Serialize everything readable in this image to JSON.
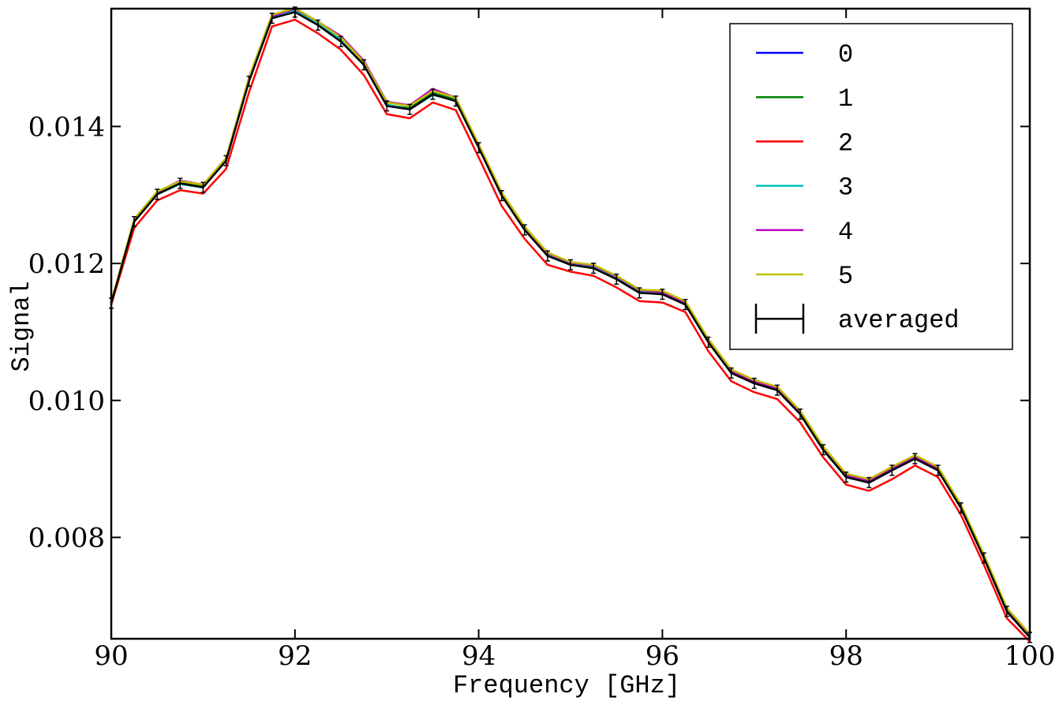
{
  "chart_data": {
    "type": "line",
    "title": "",
    "xlabel": "Frequency [GHz]",
    "ylabel": "Signal",
    "xlim": [
      90,
      100
    ],
    "ylim": [
      0.00652,
      0.01572
    ],
    "xticks": [
      90,
      92,
      94,
      96,
      98,
      100
    ],
    "xtick_labels": [
      "90",
      "92",
      "94",
      "96",
      "98",
      "100"
    ],
    "yticks": [
      0.008,
      0.01,
      0.012,
      0.014
    ],
    "ytick_labels": [
      "0.008",
      "0.010",
      "0.012",
      "0.014"
    ],
    "grid": false,
    "legend_position": "top-right",
    "x": [
      90.0,
      90.25,
      90.5,
      90.75,
      91.0,
      91.25,
      91.5,
      91.75,
      92.0,
      92.25,
      92.5,
      92.75,
      93.0,
      93.25,
      93.5,
      93.75,
      94.0,
      94.25,
      94.5,
      94.75,
      95.0,
      95.25,
      95.5,
      95.75,
      96.0,
      96.25,
      96.5,
      96.75,
      97.0,
      97.25,
      97.5,
      97.75,
      98.0,
      98.25,
      98.5,
      98.75,
      99.0,
      99.25,
      99.5,
      99.75,
      100.0
    ],
    "series": [
      {
        "name": "0",
        "color": "#0000ff",
        "values": [
          0.01142,
          0.01262,
          0.01302,
          0.01318,
          0.01312,
          0.0135,
          0.01468,
          0.01558,
          0.01568,
          0.01548,
          0.01525,
          0.0149,
          0.0143,
          0.01425,
          0.01448,
          0.01438,
          0.0137,
          0.013,
          0.0125,
          0.01212,
          0.01198,
          0.01194,
          0.01178,
          0.01158,
          0.01155,
          0.0114,
          0.01085,
          0.0104,
          0.01025,
          0.01015,
          0.0098,
          0.00928,
          0.00888,
          0.0088,
          0.00898,
          0.00915,
          0.00898,
          0.00843,
          0.0077,
          0.00692,
          0.00654
        ]
      },
      {
        "name": "1",
        "color": "#008000",
        "values": [
          0.01142,
          0.01262,
          0.01303,
          0.01319,
          0.01313,
          0.01351,
          0.01469,
          0.01559,
          0.01569,
          0.01549,
          0.01526,
          0.01491,
          0.01431,
          0.01427,
          0.01449,
          0.01439,
          0.01371,
          0.01301,
          0.01251,
          0.01213,
          0.01199,
          0.01195,
          0.01179,
          0.01159,
          0.01156,
          0.01141,
          0.01086,
          0.01041,
          0.01026,
          0.01016,
          0.00981,
          0.00929,
          0.00889,
          0.00881,
          0.00899,
          0.00916,
          0.00899,
          0.00844,
          0.00771,
          0.00693,
          0.00655
        ]
      },
      {
        "name": "2",
        "color": "#ff0000",
        "values": [
          0.0114,
          0.01252,
          0.01292,
          0.01307,
          0.01302,
          0.01338,
          0.0145,
          0.01546,
          0.01556,
          0.01536,
          0.01512,
          0.01475,
          0.01418,
          0.01412,
          0.01435,
          0.01424,
          0.01355,
          0.01284,
          0.01236,
          0.01198,
          0.01188,
          0.01182,
          0.01165,
          0.01145,
          0.01143,
          0.01129,
          0.01072,
          0.01028,
          0.01012,
          0.01002,
          0.00968,
          0.00917,
          0.00877,
          0.00868,
          0.00885,
          0.00905,
          0.00888,
          0.00833,
          0.0076,
          0.00682,
          0.00648
        ]
      },
      {
        "name": "3",
        "color": "#00bfbf",
        "values": [
          0.01142,
          0.01263,
          0.01301,
          0.01316,
          0.01311,
          0.01351,
          0.01469,
          0.01559,
          0.0157,
          0.0155,
          0.01527,
          0.01492,
          0.01432,
          0.01425,
          0.01446,
          0.01438,
          0.01371,
          0.01301,
          0.01251,
          0.01213,
          0.01199,
          0.01196,
          0.0118,
          0.0116,
          0.01157,
          0.01142,
          0.01087,
          0.01042,
          0.01027,
          0.01017,
          0.00982,
          0.0093,
          0.0089,
          0.00882,
          0.009,
          0.00917,
          0.009,
          0.00845,
          0.00772,
          0.00694,
          0.00656
        ]
      },
      {
        "name": "4",
        "color": "#bf00bf",
        "values": [
          0.01143,
          0.01264,
          0.01304,
          0.01321,
          0.01315,
          0.01353,
          0.0147,
          0.01561,
          0.01572,
          0.01553,
          0.01532,
          0.01496,
          0.01436,
          0.01431,
          0.01455,
          0.01442,
          0.01373,
          0.01303,
          0.01253,
          0.01215,
          0.01201,
          0.01197,
          0.01181,
          0.01161,
          0.01158,
          0.01143,
          0.01088,
          0.01043,
          0.01028,
          0.01018,
          0.00983,
          0.00931,
          0.00891,
          0.00883,
          0.00901,
          0.00918,
          0.00901,
          0.00846,
          0.00773,
          0.00695,
          0.00657
        ]
      },
      {
        "name": "5",
        "color": "#bfbf00",
        "values": [
          0.01144,
          0.01265,
          0.01305,
          0.0132,
          0.01315,
          0.01354,
          0.01472,
          0.01563,
          0.01573,
          0.01553,
          0.0153,
          0.01494,
          0.01435,
          0.0143,
          0.01452,
          0.01442,
          0.01374,
          0.01304,
          0.01254,
          0.01216,
          0.01202,
          0.01198,
          0.01182,
          0.01162,
          0.0116,
          0.01145,
          0.0109,
          0.01045,
          0.0103,
          0.0102,
          0.00985,
          0.00933,
          0.00893,
          0.00885,
          0.00903,
          0.0092,
          0.00903,
          0.00848,
          0.00775,
          0.00697,
          0.00659
        ]
      },
      {
        "name": "averaged",
        "color": "#000000",
        "errorbars": true,
        "error": 5e-05,
        "values": [
          0.01142,
          0.01261,
          0.01301,
          0.01317,
          0.01311,
          0.0135,
          0.01466,
          0.01558,
          0.01567,
          0.01548,
          0.01524,
          0.0149,
          0.0143,
          0.01425,
          0.01447,
          0.01437,
          0.01369,
          0.01299,
          0.01249,
          0.01211,
          0.01198,
          0.01193,
          0.01177,
          0.01157,
          0.01155,
          0.0114,
          0.01085,
          0.0104,
          0.01025,
          0.01015,
          0.0098,
          0.00928,
          0.00888,
          0.0088,
          0.00898,
          0.00915,
          0.00898,
          0.00843,
          0.0077,
          0.00692,
          0.00654
        ]
      }
    ]
  }
}
